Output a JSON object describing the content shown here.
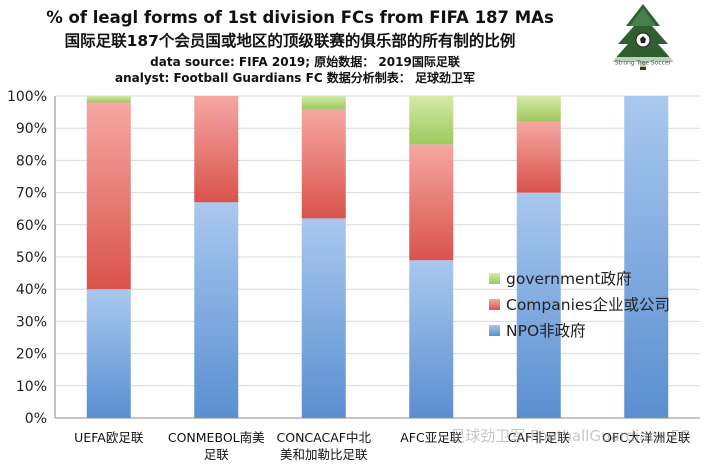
{
  "header": {
    "title": "% of leagl forms of 1st division FCs from FIFA 187 MAs",
    "subtitle": "国际足联187个会员国或地区的顶级联赛的俱乐部的所有制的比例",
    "source_line": "data source: FIFA 2019; 原始数据： 2019国际足联",
    "analyst_line": "analyst: Football Guardians FC 数据分析制表： 足球劲卫军"
  },
  "logo": {
    "icon": "tree-soccer-ball-logo",
    "text": "Strong Tree Soccer"
  },
  "watermark": "足球劲卫军 FootballGuardians FC",
  "colors": {
    "npo": "#8fb6e6",
    "npo_dark": "#5a8fd0",
    "companies": "#f08a84",
    "companies_dark": "#d9534c",
    "government": "#c3df8c",
    "government_dark": "#93c250",
    "grid": "#d9d9d9",
    "axis": "#888888"
  },
  "chart_data": {
    "type": "bar",
    "stacked": true,
    "categories": [
      "UEFA欧足联",
      "CONMEBOL南美\n足联",
      "CONCACAF中北\n美和加勒比足联",
      "AFC亚足联",
      "CAF非足联",
      "OFC大洋洲足联"
    ],
    "series": [
      {
        "name": "NPO非政府",
        "values": [
          40,
          67,
          62,
          49,
          70,
          100
        ]
      },
      {
        "name": "Companies企业或公司",
        "values": [
          58,
          33,
          34,
          36,
          22,
          0
        ]
      },
      {
        "name": "government政府",
        "values": [
          2,
          0,
          4,
          15,
          8,
          0
        ]
      }
    ],
    "yticks": [
      "0%",
      "10%",
      "20%",
      "30%",
      "40%",
      "50%",
      "60%",
      "70%",
      "80%",
      "90%",
      "100%"
    ],
    "ylim": [
      0,
      100
    ],
    "grid": true,
    "legend_position": "right"
  }
}
